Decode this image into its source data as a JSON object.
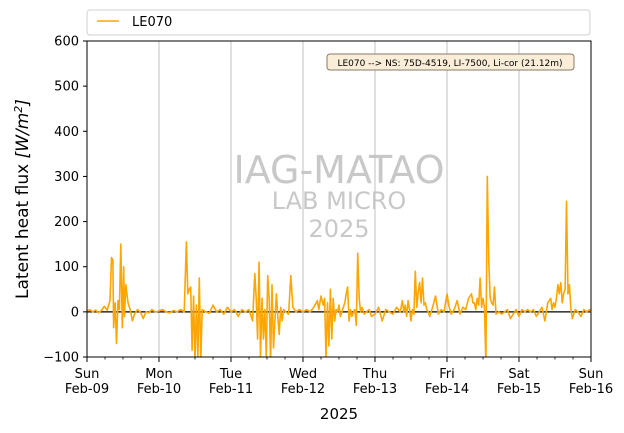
{
  "chart_data": {
    "type": "line",
    "xlabel": "2025",
    "ylabel": "Latent heat flux [W/m²]",
    "ylabel_main": "Latent heat flux ",
    "ylabel_unit_base": "[W/m",
    "ylabel_unit_exp": "2",
    "ylabel_unit_close": "]",
    "ylim": [
      -100,
      600
    ],
    "yticks": [
      -100,
      0,
      100,
      200,
      300,
      400,
      500,
      600
    ],
    "xlim": [
      "2025-02-09",
      "2025-02-16"
    ],
    "xticks": [
      {
        "day": "Sun",
        "date": "Feb-09"
      },
      {
        "day": "Mon",
        "date": "Feb-10"
      },
      {
        "day": "Tue",
        "date": "Feb-11"
      },
      {
        "day": "Wed",
        "date": "Feb-12"
      },
      {
        "day": "Thu",
        "date": "Feb-13"
      },
      {
        "day": "Fri",
        "date": "Feb-14"
      },
      {
        "day": "Sat",
        "date": "Feb-15"
      },
      {
        "day": "Sun",
        "date": "Feb-16"
      }
    ],
    "grid": "vertical",
    "legend_position": "above",
    "annotation": "LE070 --> NS: 75D-4519, LI-7500, Li-cor (21.12m)",
    "watermark": [
      "IAG-MATAO",
      "LAB MICRO",
      "2025"
    ],
    "series": [
      {
        "name": "LE070",
        "color": "#ffa500",
        "x_days_note": "x values are dates in 2025, given as day-of-February (e.g. 9.5 = Feb-09 12:00)",
        "points": [
          [
            9.0,
            2
          ],
          [
            9.04,
            5
          ],
          [
            9.08,
            0
          ],
          [
            9.12,
            4
          ],
          [
            9.16,
            -2
          ],
          [
            9.2,
            3
          ],
          [
            9.24,
            12
          ],
          [
            9.28,
            4
          ],
          [
            9.32,
            25
          ],
          [
            9.34,
            120
          ],
          [
            9.36,
            115
          ],
          [
            9.37,
            -35
          ],
          [
            9.39,
            20
          ],
          [
            9.41,
            -70
          ],
          [
            9.43,
            25
          ],
          [
            9.45,
            5
          ],
          [
            9.47,
            150
          ],
          [
            9.49,
            -35
          ],
          [
            9.51,
            100
          ],
          [
            9.52,
            -10
          ],
          [
            9.54,
            60
          ],
          [
            9.57,
            20
          ],
          [
            9.6,
            5
          ],
          [
            9.63,
            -20
          ],
          [
            9.66,
            -5
          ],
          [
            9.7,
            5
          ],
          [
            9.74,
            0
          ],
          [
            9.78,
            -15
          ],
          [
            9.82,
            0
          ],
          [
            9.86,
            -2
          ],
          [
            9.9,
            5
          ],
          [
            9.95,
            0
          ],
          [
            10.0,
            2
          ],
          [
            10.05,
            5
          ],
          [
            10.1,
            0
          ],
          [
            10.15,
            -2
          ],
          [
            10.2,
            3
          ],
          [
            10.25,
            0
          ],
          [
            10.3,
            5
          ],
          [
            10.35,
            0
          ],
          [
            10.38,
            155
          ],
          [
            10.4,
            40
          ],
          [
            10.42,
            50
          ],
          [
            10.44,
            55
          ],
          [
            10.46,
            -85
          ],
          [
            10.48,
            35
          ],
          [
            10.5,
            -110
          ],
          [
            10.52,
            15
          ],
          [
            10.54,
            -100
          ],
          [
            10.56,
            75
          ],
          [
            10.58,
            -110
          ],
          [
            10.6,
            5
          ],
          [
            10.65,
            0
          ],
          [
            10.7,
            -3
          ],
          [
            10.75,
            15
          ],
          [
            10.8,
            0
          ],
          [
            10.85,
            5
          ],
          [
            10.9,
            -5
          ],
          [
            10.95,
            10
          ],
          [
            11.0,
            0
          ],
          [
            11.05,
            5
          ],
          [
            11.1,
            -10
          ],
          [
            11.15,
            5
          ],
          [
            11.2,
            0
          ],
          [
            11.25,
            5
          ],
          [
            11.3,
            -20
          ],
          [
            11.33,
            85
          ],
          [
            11.35,
            30
          ],
          [
            11.37,
            -60
          ],
          [
            11.39,
            110
          ],
          [
            11.41,
            -100
          ],
          [
            11.43,
            30
          ],
          [
            11.45,
            -60
          ],
          [
            11.47,
            5
          ],
          [
            11.49,
            -100
          ],
          [
            11.51,
            80
          ],
          [
            11.53,
            30
          ],
          [
            11.55,
            -110
          ],
          [
            11.57,
            60
          ],
          [
            11.59,
            -80
          ],
          [
            11.61,
            -20
          ],
          [
            11.63,
            40
          ],
          [
            11.65,
            -10
          ],
          [
            11.67,
            -50
          ],
          [
            11.69,
            10
          ],
          [
            11.71,
            -20
          ],
          [
            11.73,
            5
          ],
          [
            11.76,
            0
          ],
          [
            11.8,
            -5
          ],
          [
            11.83,
            80
          ],
          [
            11.86,
            10
          ],
          [
            11.9,
            0
          ],
          [
            11.95,
            5
          ],
          [
            12.0,
            0
          ],
          [
            12.05,
            5
          ],
          [
            12.1,
            0
          ],
          [
            12.15,
            10
          ],
          [
            12.2,
            25
          ],
          [
            12.22,
            5
          ],
          [
            12.25,
            35
          ],
          [
            12.28,
            15
          ],
          [
            12.3,
            30
          ],
          [
            12.32,
            -100
          ],
          [
            12.34,
            20
          ],
          [
            12.36,
            -75
          ],
          [
            12.38,
            50
          ],
          [
            12.4,
            -60
          ],
          [
            12.42,
            30
          ],
          [
            12.44,
            -20
          ],
          [
            12.46,
            5
          ],
          [
            12.48,
            0
          ],
          [
            12.5,
            15
          ],
          [
            12.52,
            -10
          ],
          [
            12.55,
            5
          ],
          [
            12.58,
            20
          ],
          [
            12.6,
            40
          ],
          [
            12.62,
            55
          ],
          [
            12.64,
            -20
          ],
          [
            12.66,
            5
          ],
          [
            12.68,
            -10
          ],
          [
            12.7,
            0
          ],
          [
            12.72,
            5
          ],
          [
            12.74,
            -30
          ],
          [
            12.76,
            130
          ],
          [
            12.78,
            30
          ],
          [
            12.8,
            0
          ],
          [
            12.82,
            10
          ],
          [
            12.85,
            -5
          ],
          [
            12.88,
            0
          ],
          [
            12.92,
            5
          ],
          [
            12.95,
            -10
          ],
          [
            13.0,
            -5
          ],
          [
            13.05,
            10
          ],
          [
            13.1,
            -20
          ],
          [
            13.15,
            5
          ],
          [
            13.2,
            0
          ],
          [
            13.25,
            -5
          ],
          [
            13.3,
            10
          ],
          [
            13.35,
            0
          ],
          [
            13.38,
            25
          ],
          [
            13.4,
            0
          ],
          [
            13.42,
            15
          ],
          [
            13.44,
            -10
          ],
          [
            13.46,
            25
          ],
          [
            13.48,
            5
          ],
          [
            13.5,
            -20
          ],
          [
            13.52,
            5
          ],
          [
            13.54,
            -5
          ],
          [
            13.56,
            90
          ],
          [
            13.58,
            10
          ],
          [
            13.6,
            45
          ],
          [
            13.62,
            65
          ],
          [
            13.64,
            20
          ],
          [
            13.66,
            75
          ],
          [
            13.68,
            15
          ],
          [
            13.7,
            20
          ],
          [
            13.72,
            5
          ],
          [
            13.74,
            0
          ],
          [
            13.76,
            -10
          ],
          [
            13.8,
            10
          ],
          [
            13.84,
            35
          ],
          [
            13.88,
            -5
          ],
          [
            13.92,
            5
          ],
          [
            13.96,
            0
          ],
          [
            14.0,
            40
          ],
          [
            14.03,
            10
          ],
          [
            14.06,
            -5
          ],
          [
            14.1,
            5
          ],
          [
            14.14,
            25
          ],
          [
            14.18,
            -5
          ],
          [
            14.22,
            10
          ],
          [
            14.26,
            5
          ],
          [
            14.3,
            30
          ],
          [
            14.34,
            40
          ],
          [
            14.36,
            20
          ],
          [
            14.38,
            20
          ],
          [
            14.4,
            5
          ],
          [
            14.42,
            30
          ],
          [
            14.44,
            15
          ],
          [
            14.46,
            75
          ],
          [
            14.48,
            10
          ],
          [
            14.5,
            30
          ],
          [
            14.52,
            10
          ],
          [
            14.54,
            -110
          ],
          [
            14.56,
            300
          ],
          [
            14.58,
            110
          ],
          [
            14.6,
            30
          ],
          [
            14.62,
            20
          ],
          [
            14.64,
            15
          ],
          [
            14.66,
            55
          ],
          [
            14.68,
            -5
          ],
          [
            14.72,
            0
          ],
          [
            14.76,
            -5
          ],
          [
            14.8,
            0
          ],
          [
            14.84,
            5
          ],
          [
            14.88,
            -15
          ],
          [
            14.92,
            -5
          ],
          [
            14.96,
            5
          ],
          [
            15.0,
            -10
          ],
          [
            15.04,
            5
          ],
          [
            15.08,
            0
          ],
          [
            15.12,
            5
          ],
          [
            15.16,
            0
          ],
          [
            15.2,
            5
          ],
          [
            15.24,
            -10
          ],
          [
            15.28,
            0
          ],
          [
            15.32,
            10
          ],
          [
            15.36,
            -20
          ],
          [
            15.4,
            20
          ],
          [
            15.44,
            30
          ],
          [
            15.46,
            5
          ],
          [
            15.48,
            20
          ],
          [
            15.5,
            10
          ],
          [
            15.52,
            30
          ],
          [
            15.54,
            60
          ],
          [
            15.56,
            40
          ],
          [
            15.58,
            65
          ],
          [
            15.6,
            20
          ],
          [
            15.62,
            40
          ],
          [
            15.64,
            50
          ],
          [
            15.66,
            245
          ],
          [
            15.68,
            40
          ],
          [
            15.7,
            60
          ],
          [
            15.72,
            10
          ],
          [
            15.74,
            -15
          ],
          [
            15.78,
            5
          ],
          [
            15.82,
            0
          ],
          [
            15.86,
            -10
          ],
          [
            15.9,
            5
          ],
          [
            15.94,
            0
          ],
          [
            15.98,
            5
          ],
          [
            16.0,
            0
          ]
        ]
      }
    ]
  }
}
